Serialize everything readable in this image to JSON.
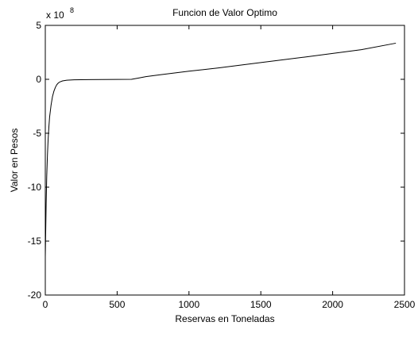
{
  "chart_data": {
    "type": "line",
    "title": "Funcion de Valor Optimo",
    "xlabel": "Reservas en Toneladas",
    "ylabel": "Valor en Pesos",
    "y_multiplier": {
      "base": "x 10",
      "exponent": "8"
    },
    "xlim": [
      0,
      2500
    ],
    "ylim": [
      -20,
      5
    ],
    "x_ticks": [
      0,
      500,
      1000,
      1500,
      2000,
      2500
    ],
    "y_ticks": [
      -20,
      -15,
      -10,
      -5,
      0,
      5
    ],
    "grid": false,
    "legend": "none",
    "line_color": "#000000",
    "series": [
      {
        "x": [
          0,
          3,
          6,
          10,
          15,
          20,
          25,
          30,
          40,
          50,
          60,
          70,
          80,
          90,
          100,
          120,
          150,
          200,
          300,
          400,
          500,
          600,
          650,
          700,
          800,
          1000,
          1200,
          1500,
          1800,
          2000,
          2200,
          2440
        ],
        "y": [
          -16.5,
          -14.0,
          -11.5,
          -9.0,
          -7.0,
          -5.5,
          -4.4,
          -3.5,
          -2.4,
          -1.6,
          -1.1,
          -0.75,
          -0.5,
          -0.35,
          -0.25,
          -0.15,
          -0.08,
          -0.05,
          -0.03,
          -0.02,
          -0.01,
          0.0,
          0.12,
          0.25,
          0.42,
          0.75,
          1.05,
          1.55,
          2.05,
          2.4,
          2.75,
          3.35
        ]
      }
    ]
  }
}
